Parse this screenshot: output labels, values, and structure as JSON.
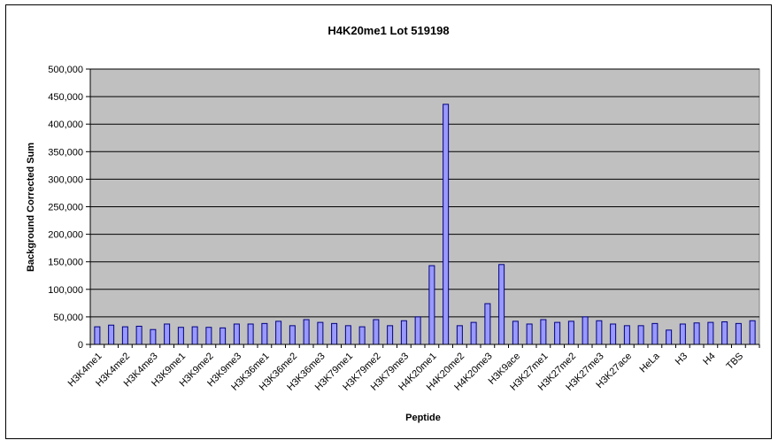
{
  "chart_data": {
    "type": "bar",
    "title": "H4K20me1 Lot 519198",
    "xlabel": "Peptide",
    "ylabel": "Background Corrected Sum",
    "ylim": [
      0,
      500000
    ],
    "yticks": [
      "0",
      "50,000",
      "100,000",
      "150,000",
      "200,000",
      "250,000",
      "300,000",
      "350,000",
      "400,000",
      "450,000",
      "500,000"
    ],
    "grid": true,
    "legend": "none",
    "plot_background": "#c0c0c0",
    "bar_color": "#9999ff",
    "tick_labels": [
      "H3K4me1",
      "H3K4me2",
      "H3K4me3",
      "H3K9me1",
      "H3K9me2",
      "H3K9me3",
      "H3K36me1",
      "H3K36me2",
      "H3K36me3",
      "H3K79me1",
      "H3K79me2",
      "H3K79me3",
      "H4K20me1",
      "H4K20me2",
      "H4K20me3",
      "H3K9ace",
      "H3K27me1",
      "H3K27me2",
      "H3K27me3",
      "H3K27ace",
      "HeLa",
      "H3",
      "H4",
      "TBS"
    ],
    "values": [
      32000,
      35000,
      32000,
      33000,
      27000,
      37000,
      31000,
      32000,
      31000,
      30000,
      37000,
      37000,
      38000,
      42000,
      34000,
      45000,
      40000,
      38000,
      34000,
      32000,
      45000,
      34000,
      43000,
      50000,
      143000,
      436000,
      34000,
      40000,
      74000,
      145000,
      42000,
      37000,
      45000,
      40000,
      42000,
      50000,
      43000,
      37000,
      34000,
      34000,
      38000,
      26000,
      37000,
      39000,
      40000,
      41000,
      38000,
      43000
    ]
  }
}
